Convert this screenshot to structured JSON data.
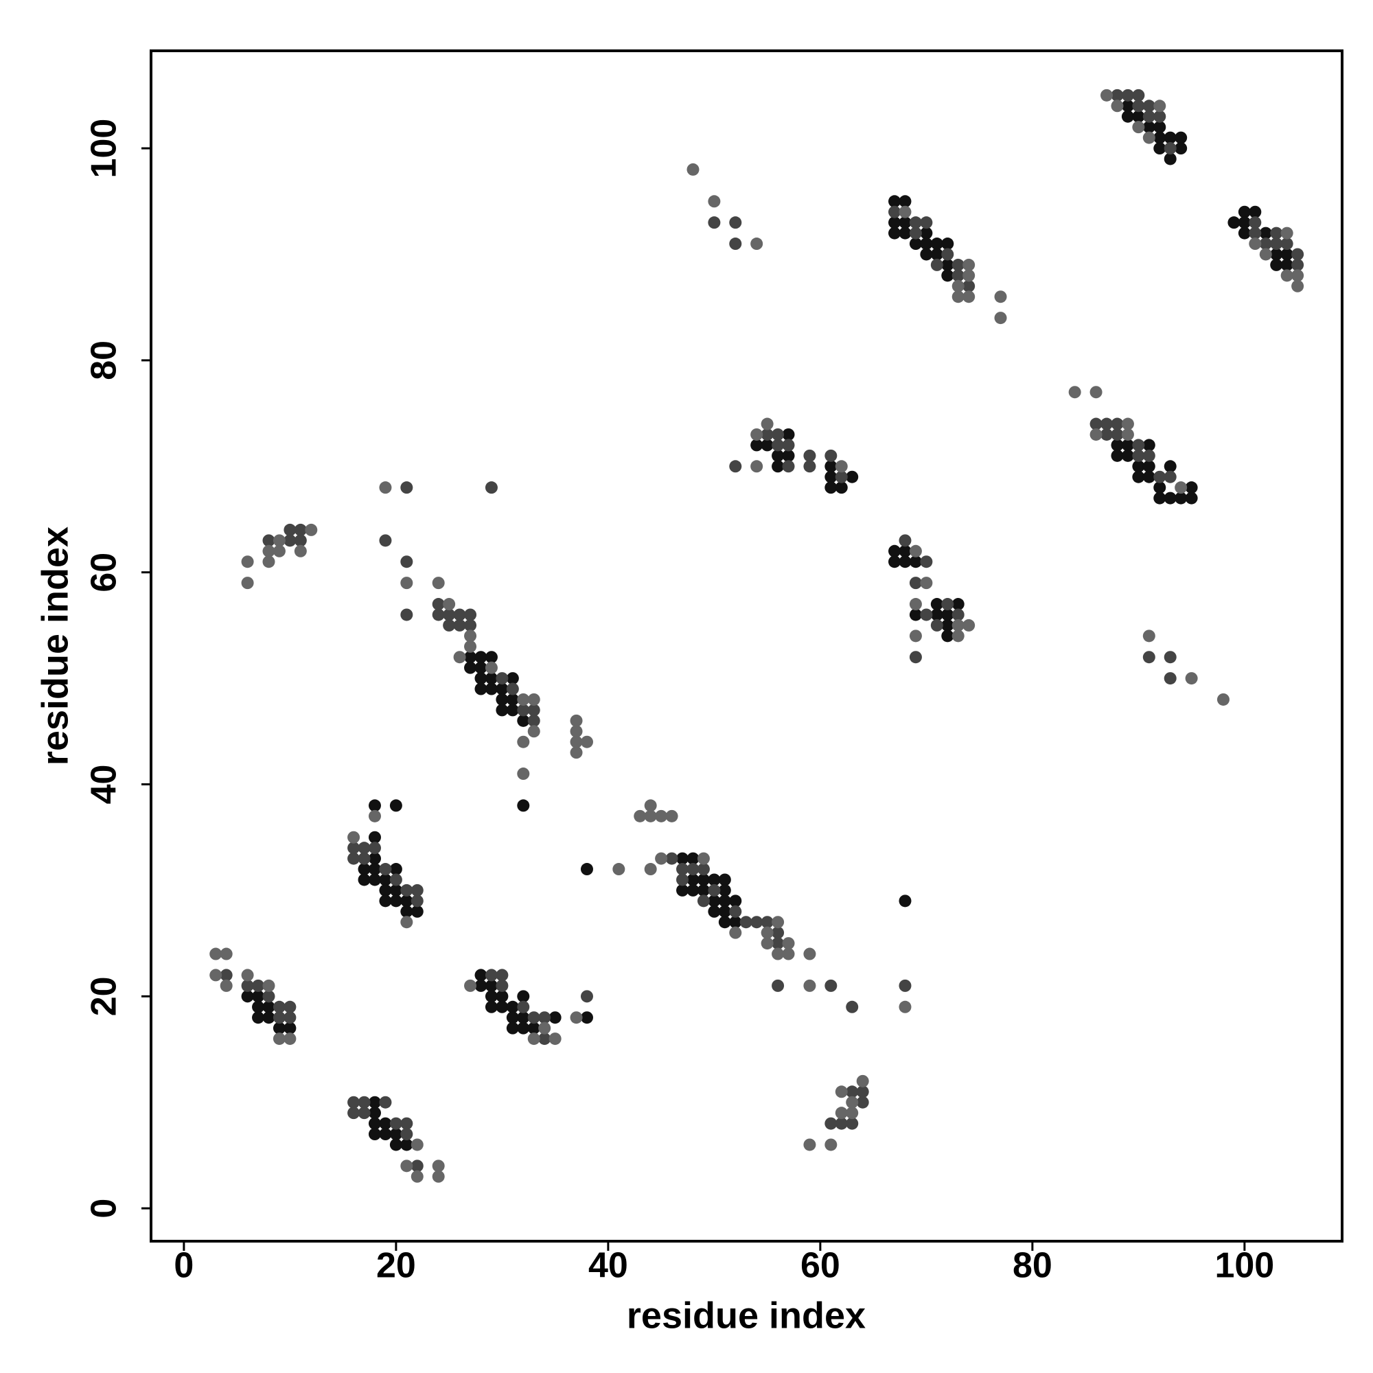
{
  "chart_data": {
    "type": "scatter",
    "x_label": "residue index",
    "y_label": "residue index",
    "xlim": [
      -3.1,
      109.2
    ],
    "ylim": [
      -3.1,
      109.2
    ],
    "xticks": [
      0,
      20,
      40,
      60,
      80,
      100
    ],
    "yticks": [
      0,
      20,
      40,
      60,
      80,
      100
    ],
    "grid": false,
    "series": [
      {
        "color": "#111111",
        "x": [
          6,
          7,
          7,
          7,
          8,
          8,
          9,
          10,
          18,
          18,
          18,
          18,
          19,
          19,
          20,
          20,
          21,
          17,
          17,
          18,
          18,
          18,
          18,
          18,
          19,
          19,
          19,
          20,
          20,
          20,
          20,
          21,
          21,
          22,
          28,
          28,
          29,
          29,
          29,
          30,
          30,
          31,
          31,
          31,
          32,
          32,
          32,
          33,
          35,
          38,
          27,
          27,
          28,
          28,
          28,
          28,
          29,
          29,
          29,
          30,
          30,
          30,
          31,
          31,
          31,
          32,
          32,
          38,
          47,
          47,
          48,
          48,
          48,
          49,
          49,
          50,
          50,
          50,
          51,
          51,
          51,
          51,
          51,
          52,
          52,
          68,
          54,
          55,
          56,
          56,
          57,
          57,
          61,
          61,
          61,
          62,
          63,
          67,
          67,
          68,
          68,
          69,
          69,
          71,
          71,
          72,
          72,
          72,
          73,
          67,
          67,
          67,
          68,
          68,
          68,
          69,
          70,
          70,
          70,
          71,
          71,
          72,
          72,
          72,
          88,
          88,
          89,
          89,
          90,
          90,
          91,
          91,
          91,
          92,
          92,
          93,
          93,
          94,
          95,
          95,
          89,
          89,
          90,
          91,
          92,
          92,
          92,
          93,
          93,
          94,
          94,
          99,
          100,
          100,
          100,
          101,
          102,
          103,
          103,
          104,
          104
        ],
        "values": [
          20,
          20,
          19,
          18,
          19,
          18,
          17,
          17,
          10,
          9,
          8,
          7,
          8,
          7,
          7,
          6,
          6,
          32,
          31,
          38,
          35,
          33,
          32,
          31,
          31,
          30,
          29,
          38,
          32,
          30,
          29,
          29,
          28,
          28,
          22,
          21,
          21,
          20,
          19,
          20,
          19,
          19,
          18,
          17,
          20,
          18,
          17,
          17,
          18,
          18,
          52,
          51,
          52,
          51,
          50,
          49,
          52,
          50,
          49,
          49,
          48,
          47,
          50,
          48,
          47,
          46,
          38,
          32,
          33,
          30,
          33,
          31,
          30,
          31,
          30,
          31,
          29,
          28,
          31,
          30,
          29,
          28,
          27,
          29,
          27,
          29,
          72,
          72,
          71,
          70,
          73,
          71,
          70,
          69,
          68,
          68,
          69,
          62,
          61,
          62,
          61,
          61,
          56,
          57,
          56,
          56,
          55,
          54,
          57,
          95,
          93,
          92,
          95,
          93,
          92,
          91,
          92,
          91,
          90,
          91,
          90,
          91,
          89,
          88,
          72,
          71,
          72,
          71,
          70,
          69,
          72,
          70,
          69,
          68,
          67,
          70,
          67,
          67,
          68,
          67,
          104,
          103,
          103,
          102,
          102,
          101,
          100,
          101,
          99,
          101,
          100,
          93,
          94,
          93,
          92,
          94,
          92,
          90,
          89,
          90,
          89
        ]
      },
      {
        "color": "#444444",
        "x": [
          4,
          6,
          7,
          8,
          9,
          9,
          10,
          10,
          16,
          16,
          17,
          17,
          19,
          20,
          21,
          21,
          22,
          16,
          16,
          17,
          17,
          18,
          19,
          20,
          21,
          22,
          22,
          29,
          30,
          30,
          32,
          33,
          34,
          34,
          38,
          24,
          24,
          25,
          25,
          26,
          26,
          27,
          27,
          30,
          31,
          32,
          33,
          33,
          8,
          10,
          10,
          11,
          11,
          21,
          29,
          19,
          21,
          21,
          46,
          47,
          47,
          48,
          49,
          49,
          50,
          52,
          53,
          54,
          55,
          56,
          56,
          56,
          61,
          63,
          68,
          61,
          62,
          63,
          63,
          64,
          64,
          50,
          52,
          52,
          52,
          55,
          56,
          56,
          57,
          57,
          59,
          59,
          61,
          62,
          68,
          69,
          69,
          70,
          70,
          71,
          72,
          73,
          67,
          69,
          69,
          70,
          71,
          72,
          73,
          73,
          74,
          86,
          87,
          87,
          88,
          88,
          90,
          90,
          91,
          92,
          93,
          91,
          93,
          93,
          88,
          89,
          90,
          90,
          91,
          91,
          92,
          93,
          101,
          101,
          102,
          103,
          103,
          104,
          105,
          105
        ],
        "values": [
          22,
          21,
          21,
          20,
          19,
          18,
          19,
          18,
          10,
          9,
          10,
          9,
          10,
          8,
          8,
          7,
          4,
          34,
          33,
          34,
          33,
          34,
          32,
          31,
          30,
          30,
          29,
          22,
          22,
          21,
          19,
          18,
          18,
          16,
          20,
          57,
          56,
          56,
          55,
          56,
          55,
          56,
          55,
          50,
          49,
          47,
          47,
          46,
          63,
          64,
          63,
          64,
          63,
          68,
          68,
          63,
          61,
          56,
          33,
          32,
          31,
          32,
          32,
          29,
          30,
          28,
          27,
          27,
          27,
          26,
          25,
          21,
          21,
          19,
          21,
          8,
          8,
          11,
          8,
          11,
          10,
          93,
          93,
          91,
          70,
          73,
          73,
          72,
          72,
          70,
          71,
          70,
          71,
          69,
          63,
          59,
          52,
          61,
          56,
          55,
          57,
          56,
          94,
          93,
          92,
          93,
          89,
          90,
          89,
          88,
          87,
          74,
          74,
          73,
          74,
          73,
          72,
          71,
          71,
          69,
          69,
          52,
          52,
          50,
          105,
          105,
          105,
          104,
          104,
          103,
          103,
          100,
          93,
          92,
          91,
          92,
          91,
          91,
          90,
          89
        ]
      },
      {
        "color": "#666666",
        "x": [
          3,
          4,
          3,
          4,
          6,
          8,
          9,
          10,
          21,
          22,
          22,
          24,
          24,
          16,
          18,
          21,
          27,
          33,
          34,
          35,
          37,
          24,
          25,
          26,
          27,
          27,
          29,
          32,
          32,
          32,
          33,
          33,
          37,
          37,
          37,
          37,
          38,
          6,
          6,
          8,
          8,
          9,
          9,
          11,
          12,
          19,
          21,
          41,
          43,
          44,
          44,
          44,
          45,
          45,
          46,
          49,
          52,
          55,
          55,
          56,
          56,
          57,
          57,
          59,
          59,
          68,
          59,
          61,
          62,
          62,
          63,
          63,
          64,
          48,
          50,
          54,
          54,
          54,
          55,
          62,
          69,
          69,
          69,
          70,
          73,
          73,
          74,
          68,
          73,
          73,
          74,
          74,
          74,
          77,
          77,
          84,
          86,
          86,
          89,
          89,
          94,
          91,
          95,
          98,
          87,
          88,
          90,
          91,
          92,
          101,
          102,
          104,
          104,
          105,
          105
        ],
        "values": [
          24,
          24,
          22,
          21,
          22,
          21,
          16,
          16,
          4,
          6,
          3,
          4,
          3,
          35,
          37,
          27,
          21,
          16,
          17,
          16,
          18,
          59,
          57,
          52,
          54,
          53,
          51,
          48,
          44,
          41,
          48,
          45,
          46,
          45,
          44,
          43,
          44,
          61,
          59,
          62,
          61,
          63,
          62,
          62,
          64,
          68,
          59,
          32,
          37,
          38,
          37,
          32,
          37,
          33,
          37,
          33,
          26,
          26,
          25,
          27,
          24,
          25,
          24,
          24,
          21,
          19,
          6,
          6,
          11,
          9,
          10,
          9,
          12,
          98,
          95,
          91,
          73,
          70,
          74,
          70,
          62,
          57,
          54,
          59,
          55,
          54,
          55,
          94,
          87,
          86,
          89,
          88,
          86,
          86,
          84,
          77,
          77,
          73,
          74,
          73,
          68,
          54,
          50,
          48,
          105,
          104,
          102,
          101,
          104,
          91,
          90,
          92,
          88,
          88,
          87
        ]
      }
    ]
  }
}
